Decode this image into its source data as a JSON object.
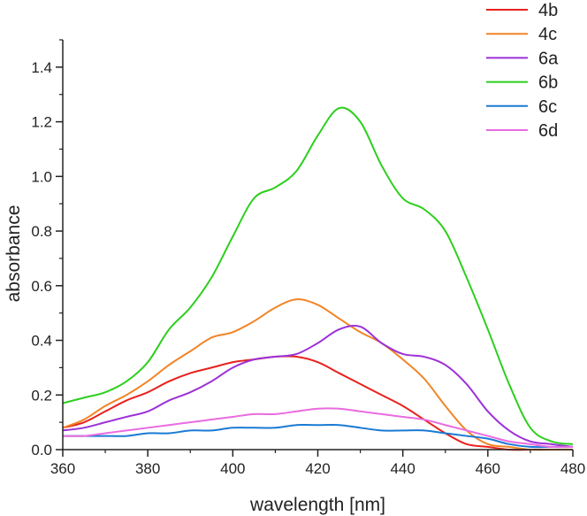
{
  "chart_data": {
    "type": "line",
    "title": "",
    "xlabel": "wavelength [nm]",
    "ylabel": "absorbance",
    "xlim": [
      360,
      480
    ],
    "ylim": [
      0,
      1.5
    ],
    "xticks": [
      360,
      380,
      400,
      420,
      440,
      460,
      480
    ],
    "xtick_labels": [
      "360",
      "380",
      "400",
      "420",
      "440",
      "460",
      "480"
    ],
    "yticks": [
      0,
      0.2,
      0.4,
      0.6,
      0.8,
      1.0,
      1.2,
      1.4
    ],
    "ytick_labels": [
      "0.0",
      "0.2",
      "0.4",
      "0.6",
      "0.8",
      "1.0",
      "1.2",
      "1.4"
    ],
    "grid": false,
    "legend_position": "top-right",
    "x": [
      360,
      365,
      370,
      375,
      380,
      385,
      390,
      395,
      400,
      405,
      410,
      415,
      420,
      425,
      430,
      435,
      440,
      445,
      450,
      455,
      460,
      465,
      470,
      475,
      480
    ],
    "series": [
      {
        "name": "4b",
        "color": "#e8211c",
        "values": [
          0.08,
          0.1,
          0.14,
          0.18,
          0.21,
          0.25,
          0.28,
          0.3,
          0.32,
          0.33,
          0.34,
          0.34,
          0.32,
          0.28,
          0.24,
          0.2,
          0.16,
          0.11,
          0.06,
          0.02,
          0.01,
          0.0,
          0.0,
          0.0,
          0.0
        ]
      },
      {
        "name": "4c",
        "color": "#f28426",
        "values": [
          0.08,
          0.11,
          0.16,
          0.2,
          0.25,
          0.31,
          0.36,
          0.41,
          0.43,
          0.47,
          0.52,
          0.55,
          0.53,
          0.48,
          0.43,
          0.39,
          0.33,
          0.26,
          0.16,
          0.07,
          0.02,
          0.01,
          0.0,
          0.0,
          0.0
        ]
      },
      {
        "name": "6a",
        "color": "#9c31d8",
        "values": [
          0.07,
          0.08,
          0.1,
          0.12,
          0.14,
          0.18,
          0.21,
          0.25,
          0.3,
          0.33,
          0.34,
          0.35,
          0.39,
          0.44,
          0.45,
          0.39,
          0.35,
          0.34,
          0.31,
          0.24,
          0.14,
          0.07,
          0.03,
          0.02,
          0.01
        ]
      },
      {
        "name": "6b",
        "color": "#2ccf1d",
        "values": [
          0.17,
          0.19,
          0.21,
          0.25,
          0.32,
          0.44,
          0.52,
          0.63,
          0.78,
          0.92,
          0.96,
          1.02,
          1.15,
          1.25,
          1.2,
          1.04,
          0.92,
          0.88,
          0.8,
          0.63,
          0.44,
          0.24,
          0.08,
          0.03,
          0.02
        ]
      },
      {
        "name": "6c",
        "color": "#1a7ad4",
        "values": [
          0.05,
          0.05,
          0.05,
          0.05,
          0.06,
          0.06,
          0.07,
          0.07,
          0.08,
          0.08,
          0.08,
          0.09,
          0.09,
          0.09,
          0.08,
          0.07,
          0.07,
          0.07,
          0.06,
          0.05,
          0.04,
          0.02,
          0.01,
          0.01,
          0.01
        ]
      },
      {
        "name": "6d",
        "color": "#e96be0",
        "values": [
          0.05,
          0.05,
          0.06,
          0.07,
          0.08,
          0.09,
          0.1,
          0.11,
          0.12,
          0.13,
          0.13,
          0.14,
          0.15,
          0.15,
          0.14,
          0.13,
          0.12,
          0.11,
          0.09,
          0.07,
          0.05,
          0.03,
          0.02,
          0.01,
          0.01
        ]
      }
    ]
  }
}
